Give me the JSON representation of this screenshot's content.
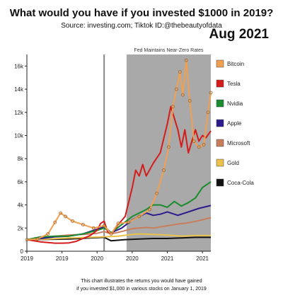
{
  "title": "What would you have if you invested $1000 in 2019?",
  "subtitle": "Source: investing.com;  Tiktok ID:@thebeautyofdata",
  "date_label": "Aug 2021",
  "footnote_line1": "This chart illustrates the returns you would have gained",
  "footnote_line2": "if you invested $1,000 in various stocks on January 1, 2019",
  "chart_data": {
    "type": "line",
    "x_unit": "year",
    "xlim": [
      2019.0,
      2021.62
    ],
    "ylim": [
      0,
      17000
    ],
    "yticks": [
      0,
      2000,
      4000,
      6000,
      8000,
      10000,
      12000,
      14000,
      16000
    ],
    "ytick_labels": [
      "0",
      "2k",
      "4k",
      "6k",
      "8k",
      "10k",
      "12k",
      "14k",
      "16k"
    ],
    "xticks": [
      2019.0,
      2019.5,
      2020.0,
      2020.5,
      2021.0,
      2021.5
    ],
    "xtick_labels": [
      "2019",
      "2019",
      "2020",
      "2020",
      "2021",
      "2021"
    ],
    "grid": false,
    "legend_position": "right",
    "annotations": [
      {
        "type": "vline",
        "x": 2020.1,
        "color": "#888888"
      },
      {
        "type": "shaded_region",
        "x_start": 2020.42,
        "x_end": 2021.62,
        "label": "Fed Maintains Near-Zero Rates",
        "color": "#a9a9a9"
      }
    ],
    "series": [
      {
        "name": "Bitcoin",
        "color": "#f0a050",
        "marker": "circle",
        "x": [
          2019.0,
          2019.15,
          2019.3,
          2019.4,
          2019.48,
          2019.55,
          2019.65,
          2019.8,
          2019.95,
          2020.1,
          2020.2,
          2020.3,
          2020.45,
          2020.6,
          2020.75,
          2020.85,
          2020.95,
          2021.02,
          2021.08,
          2021.13,
          2021.18,
          2021.22,
          2021.27,
          2021.32,
          2021.38,
          2021.45,
          2021.52,
          2021.58,
          2021.62
        ],
        "y": [
          1000,
          1050,
          1500,
          2500,
          3300,
          3000,
          2600,
          2300,
          2000,
          2200,
          1500,
          2400,
          2500,
          3000,
          3600,
          5000,
          7000,
          9000,
          12500,
          14000,
          15500,
          13500,
          16500,
          13000,
          9500,
          9000,
          9200,
          12000,
          13700
        ]
      },
      {
        "name": "Tesla",
        "color": "#d41c1c",
        "marker": "none",
        "x": [
          2019.0,
          2019.1,
          2019.2,
          2019.3,
          2019.4,
          2019.5,
          2019.6,
          2019.7,
          2019.8,
          2019.9,
          2020.0,
          2020.05,
          2020.1,
          2020.15,
          2020.2,
          2020.3,
          2020.4,
          2020.5,
          2020.55,
          2020.6,
          2020.65,
          2020.7,
          2020.8,
          2020.9,
          2021.0,
          2021.05,
          2021.1,
          2021.15,
          2021.2,
          2021.25,
          2021.3,
          2021.35,
          2021.4,
          2021.45,
          2021.5,
          2021.55,
          2021.62
        ],
        "y": [
          1000,
          900,
          800,
          750,
          700,
          700,
          720,
          850,
          1100,
          1350,
          1800,
          2400,
          2600,
          1700,
          1500,
          2300,
          3000,
          5500,
          7000,
          6500,
          7500,
          6500,
          7600,
          8500,
          11000,
          12500,
          11500,
          10500,
          9000,
          10500,
          8500,
          9500,
          10500,
          9500,
          10000,
          9800,
          10400
        ]
      },
      {
        "name": "Nvidia",
        "color": "#1a8c2e",
        "marker": "none",
        "x": [
          2019.0,
          2019.2,
          2019.4,
          2019.6,
          2019.8,
          2020.0,
          2020.1,
          2020.2,
          2020.35,
          2020.5,
          2020.6,
          2020.7,
          2020.8,
          2020.9,
          2021.0,
          2021.1,
          2021.2,
          2021.3,
          2021.4,
          2021.5,
          2021.62
        ],
        "y": [
          1000,
          1250,
          1300,
          1300,
          1500,
          1800,
          2000,
          1600,
          2300,
          3000,
          3300,
          3600,
          4000,
          4000,
          3800,
          4300,
          3900,
          4200,
          4600,
          5500,
          6000
        ]
      },
      {
        "name": "Apple",
        "color": "#2b1b8c",
        "marker": "none",
        "x": [
          2019.0,
          2019.2,
          2019.4,
          2019.6,
          2019.8,
          2020.0,
          2020.1,
          2020.2,
          2020.35,
          2020.5,
          2020.6,
          2020.7,
          2020.8,
          2020.9,
          2021.0,
          2021.15,
          2021.3,
          2021.45,
          2021.62
        ],
        "y": [
          1000,
          1100,
          1250,
          1300,
          1500,
          1900,
          2100,
          1600,
          2000,
          2700,
          3000,
          3300,
          3100,
          3200,
          3400,
          3100,
          3400,
          3700,
          3950
        ]
      },
      {
        "name": "Microsoft",
        "color": "#c87e5a",
        "marker": "none",
        "x": [
          2019.0,
          2019.2,
          2019.4,
          2019.6,
          2019.8,
          2020.0,
          2020.1,
          2020.2,
          2020.35,
          2020.5,
          2020.6,
          2020.7,
          2020.8,
          2020.9,
          2021.0,
          2021.15,
          2021.3,
          2021.45,
          2021.62
        ],
        "y": [
          1000,
          1150,
          1300,
          1400,
          1450,
          1550,
          1700,
          1500,
          1700,
          1950,
          2000,
          2050,
          2000,
          2100,
          2200,
          2350,
          2450,
          2650,
          2900
        ]
      },
      {
        "name": "Gold",
        "color": "#e8c24a",
        "marker": "none",
        "x": [
          2019.0,
          2019.3,
          2019.6,
          2019.9,
          2020.1,
          2020.3,
          2020.5,
          2020.6,
          2020.8,
          2021.0,
          2021.2,
          2021.4,
          2021.62
        ],
        "y": [
          1000,
          1050,
          1150,
          1200,
          1250,
          1300,
          1450,
          1500,
          1450,
          1400,
          1300,
          1350,
          1350
        ]
      },
      {
        "name": "Coca-Cola",
        "color": "#111111",
        "marker": "none",
        "x": [
          2019.0,
          2019.3,
          2019.6,
          2019.9,
          2020.1,
          2020.2,
          2020.4,
          2020.6,
          2020.8,
          2021.0,
          2021.2,
          2021.4,
          2021.62
        ],
        "y": [
          1000,
          1020,
          1050,
          1150,
          1200,
          900,
          1000,
          1050,
          1100,
          1100,
          1150,
          1200,
          1200
        ]
      }
    ]
  }
}
